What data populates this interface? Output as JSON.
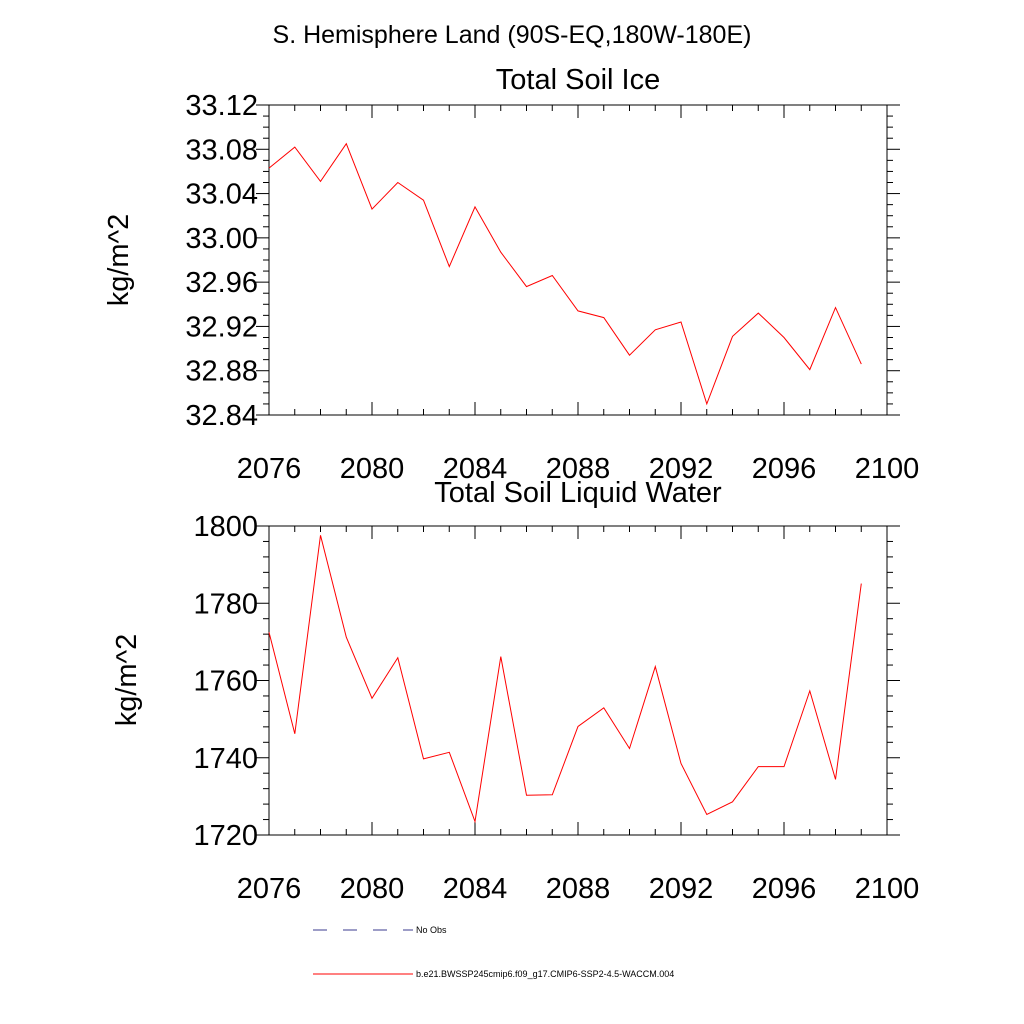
{
  "figure": {
    "suptitle": "S. Hemisphere Land (90S-EQ,180W-180E)"
  },
  "chart_data": [
    {
      "type": "line",
      "title": "Total Soil Ice",
      "xlabel": "",
      "ylabel": "kg/m^2",
      "xlim": [
        2076,
        2100
      ],
      "ylim": [
        32.84,
        33.12
      ],
      "x_ticks": [
        2076,
        2080,
        2084,
        2088,
        2092,
        2096,
        2100
      ],
      "y_ticks": [
        "32.84",
        "32.88",
        "32.92",
        "32.96",
        "33.00",
        "33.04",
        "33.08",
        "33.12"
      ],
      "grid": false,
      "series": [
        {
          "name": "b.e21.BWSSP245cmip6.f09_g17.CMIP6-SSP2-4.5-WACCM.004",
          "color": "#ff0000",
          "x": [
            2076,
            2077,
            2078,
            2079,
            2080,
            2081,
            2082,
            2083,
            2084,
            2085,
            2086,
            2087,
            2088,
            2089,
            2090,
            2091,
            2092,
            2093,
            2094,
            2095,
            2096,
            2097,
            2098,
            2099
          ],
          "values": [
            33.063,
            33.082,
            33.051,
            33.085,
            33.026,
            33.05,
            33.034,
            32.974,
            33.028,
            32.987,
            32.956,
            32.966,
            32.934,
            32.928,
            32.894,
            32.917,
            32.924,
            32.85,
            32.911,
            32.932,
            32.91,
            32.881,
            32.937,
            32.886
          ]
        }
      ]
    },
    {
      "type": "line",
      "title": "Total Soil Liquid Water",
      "xlabel": "",
      "ylabel": "kg/m^2",
      "xlim": [
        2076,
        2100
      ],
      "ylim": [
        1720,
        1800
      ],
      "x_ticks": [
        2076,
        2080,
        2084,
        2088,
        2092,
        2096,
        2100
      ],
      "y_ticks": [
        "1720",
        "1740",
        "1760",
        "1780",
        "1800"
      ],
      "grid": false,
      "series": [
        {
          "name": "b.e21.BWSSP245cmip6.f09_g17.CMIP6-SSP2-4.5-WACCM.004",
          "color": "#ff0000",
          "x": [
            2076,
            2077,
            2078,
            2079,
            2080,
            2081,
            2082,
            2083,
            2084,
            2085,
            2086,
            2087,
            2088,
            2089,
            2090,
            2091,
            2092,
            2093,
            2094,
            2095,
            2096,
            2097,
            2098,
            2099
          ],
          "values": [
            1772.5,
            1746.2,
            1797.6,
            1771.2,
            1755.4,
            1765.9,
            1739.7,
            1741.4,
            1723.5,
            1766.2,
            1730.3,
            1730.4,
            1748.1,
            1752.9,
            1742.4,
            1763.6,
            1738.5,
            1725.3,
            1728.6,
            1737.7,
            1737.7,
            1757.3,
            1734.4,
            1785.1
          ]
        }
      ]
    }
  ],
  "legend": {
    "placement": "bottom",
    "items": [
      {
        "label": "No Obs",
        "color": "#3b3b8f",
        "style": "dashed"
      },
      {
        "label": "b.e21.BWSSP245cmip6.f09_g17.CMIP6-SSP2-4.5-WACCM.004",
        "color": "#ff0000",
        "style": "solid"
      }
    ]
  }
}
